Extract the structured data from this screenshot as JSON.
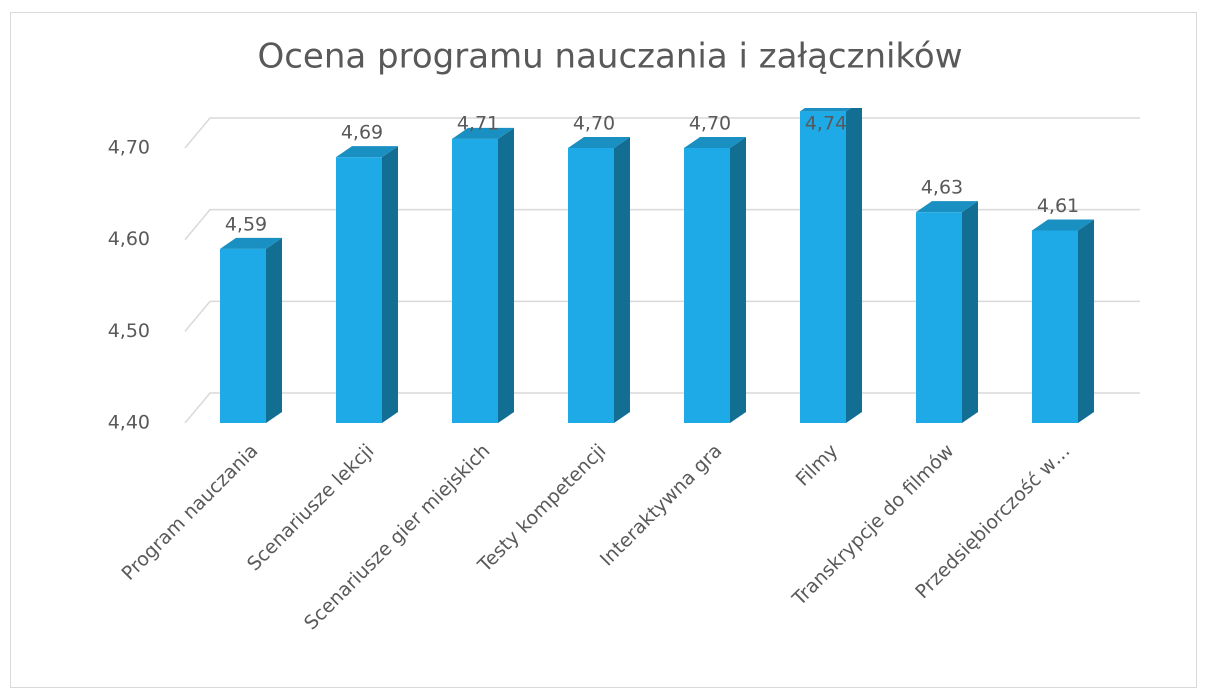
{
  "chart_data": {
    "type": "bar3d",
    "title": "Ocena programu nauczania i załączników",
    "categories": [
      "Program nauczania",
      "Scenariusze lekcji",
      "Scenariusze gier miejskich",
      "Testy kompetencji",
      "Interaktywna gra",
      "Filmy",
      "Transkrypcje do filmów",
      "Przedsiębiorczość w…"
    ],
    "values": [
      4.59,
      4.69,
      4.71,
      4.7,
      4.7,
      4.74,
      4.63,
      4.61
    ],
    "value_labels": [
      "4,59",
      "4,69",
      "4,71",
      "4,70",
      "4,70",
      "4,74",
      "4,63",
      "4,61"
    ],
    "color": "#1eaae6",
    "ylim": [
      4.4,
      4.7
    ],
    "yticks": [
      {
        "value": 4.4,
        "label": "4,40"
      },
      {
        "value": 4.5,
        "label": "4,50"
      },
      {
        "value": 4.6,
        "label": "4,60"
      },
      {
        "value": 4.7,
        "label": "4,70"
      }
    ],
    "grid": true
  }
}
